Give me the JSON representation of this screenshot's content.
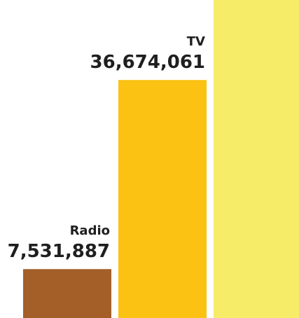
{
  "chart_data": {
    "type": "bar",
    "categories": [
      "Radio",
      "TV",
      ""
    ],
    "values": [
      7531887,
      36674061,
      49000000
    ],
    "value_labels": [
      "7,531,887",
      "36,674,061",
      ""
    ],
    "colors": [
      "#a35f27",
      "#fbc214",
      "#f6ec68"
    ],
    "title": "",
    "xlabel": "",
    "ylabel": "",
    "ylim": [
      0,
      49000000
    ],
    "grid": false,
    "legend": "none"
  }
}
